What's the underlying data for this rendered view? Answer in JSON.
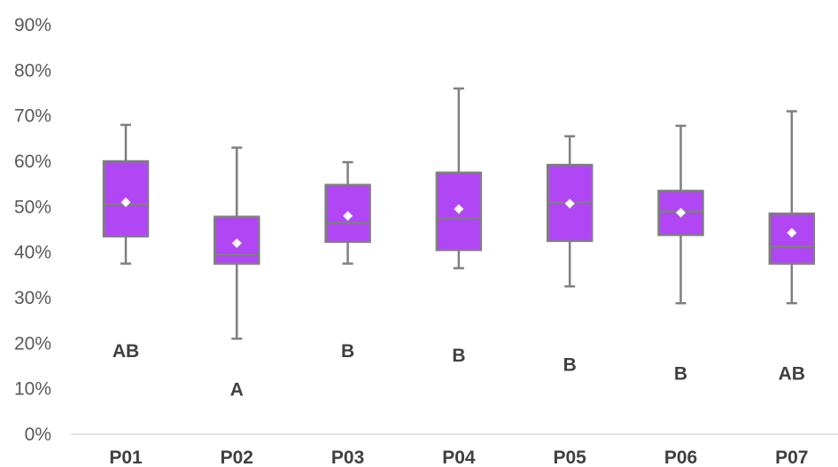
{
  "chart_data": {
    "type": "box",
    "title": "",
    "xlabel": "",
    "ylabel": "",
    "ylim": [
      0,
      0.9
    ],
    "y_ticks": [
      {
        "value": 0.0,
        "label": "0%"
      },
      {
        "value": 0.1,
        "label": "10%"
      },
      {
        "value": 0.2,
        "label": "20%"
      },
      {
        "value": 0.3,
        "label": "30%"
      },
      {
        "value": 0.4,
        "label": "40%"
      },
      {
        "value": 0.5,
        "label": "50%"
      },
      {
        "value": 0.6,
        "label": "60%"
      },
      {
        "value": 0.7,
        "label": "70%"
      },
      {
        "value": 0.8,
        "label": "80%"
      },
      {
        "value": 0.9,
        "label": "90%"
      }
    ],
    "grid": false,
    "legend": "none",
    "box_color": "#b146f5",
    "whisker_color": "#7f7f7f",
    "mean_marker_color": "#ffffff",
    "categories": [
      "P01",
      "P02",
      "P03",
      "P04",
      "P05",
      "P06",
      "P07"
    ],
    "boxes": [
      {
        "category": "P01",
        "min": 0.375,
        "q1": 0.435,
        "median": 0.505,
        "q3": 0.6,
        "max": 0.68,
        "mean": 0.51,
        "group_label": "AB",
        "group_label_y": 0.185
      },
      {
        "category": "P02",
        "min": 0.21,
        "q1": 0.375,
        "median": 0.395,
        "q3": 0.478,
        "max": 0.63,
        "mean": 0.42,
        "group_label": "A",
        "group_label_y": 0.1
      },
      {
        "category": "P03",
        "min": 0.375,
        "q1": 0.423,
        "median": 0.465,
        "q3": 0.548,
        "max": 0.598,
        "mean": 0.48,
        "group_label": "B",
        "group_label_y": 0.185
      },
      {
        "category": "P04",
        "min": 0.365,
        "q1": 0.405,
        "median": 0.475,
        "q3": 0.575,
        "max": 0.76,
        "mean": 0.495,
        "group_label": "B",
        "group_label_y": 0.175
      },
      {
        "category": "P05",
        "min": 0.325,
        "q1": 0.425,
        "median": 0.51,
        "q3": 0.592,
        "max": 0.655,
        "mean": 0.507,
        "group_label": "B",
        "group_label_y": 0.155
      },
      {
        "category": "P06",
        "min": 0.288,
        "q1": 0.438,
        "median": 0.49,
        "q3": 0.535,
        "max": 0.678,
        "mean": 0.487,
        "group_label": "B",
        "group_label_y": 0.135
      },
      {
        "category": "P07",
        "min": 0.288,
        "q1": 0.375,
        "median": 0.413,
        "q3": 0.485,
        "max": 0.71,
        "mean": 0.443,
        "group_label": "AB",
        "group_label_y": 0.135
      }
    ]
  }
}
